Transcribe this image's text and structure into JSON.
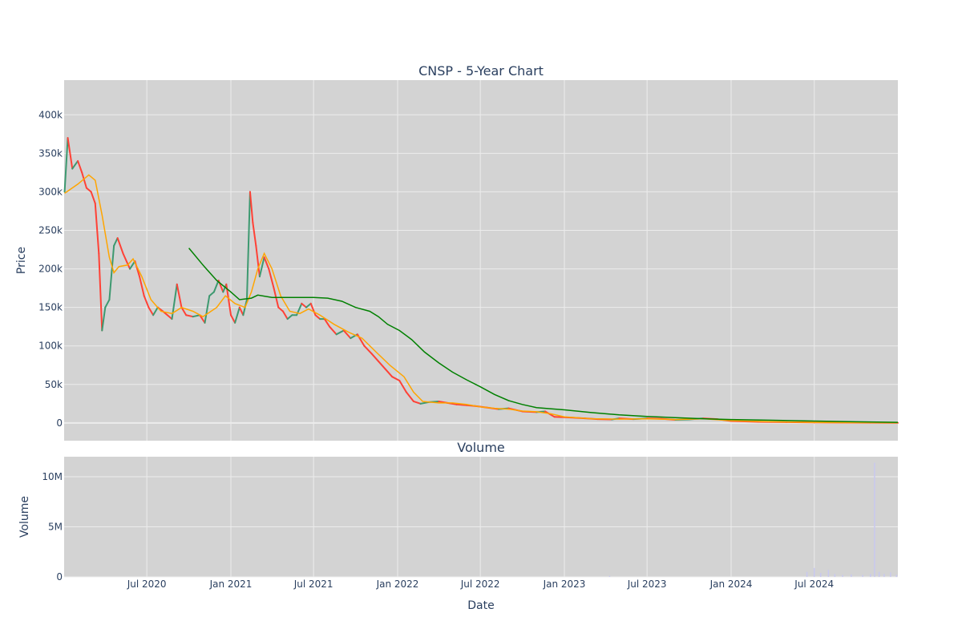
{
  "chart_data": {
    "type": "line",
    "title": "CNSP - 5-Year Chart",
    "subtitle": "Volume",
    "xlabel": "Date",
    "x_ticks": [
      "Jul 2020",
      "Jan 2021",
      "Jul 2021",
      "Jan 2022",
      "Jul 2022",
      "Jan 2023",
      "Jul 2023",
      "Jan 2024",
      "Jul 2024"
    ],
    "x_range": [
      "2020-01-02",
      "2024-12-31"
    ],
    "price_panel": {
      "ylabel": "Price",
      "ylim": [
        -23000,
        445000
      ],
      "y_ticks": [
        0,
        50000,
        100000,
        150000,
        200000,
        250000,
        300000,
        350000,
        400000
      ],
      "y_tick_labels": [
        "0",
        "50k",
        "100k",
        "150k",
        "200k",
        "250k",
        "300k",
        "350k",
        "400k"
      ],
      "grid": true,
      "series": [
        {
          "kind": "candlestick",
          "points": [
            [
              "2020-01-03",
              300000
            ],
            [
              "2020-01-10",
              370000
            ],
            [
              "2020-01-20",
              330000
            ],
            [
              "2020-02-01",
              340000
            ],
            [
              "2020-02-10",
              325000
            ],
            [
              "2020-02-20",
              305000
            ],
            [
              "2020-03-01",
              300000
            ],
            [
              "2020-03-10",
              285000
            ],
            [
              "2020-03-18",
              220000
            ],
            [
              "2020-03-25",
              120000
            ],
            [
              "2020-04-01",
              150000
            ],
            [
              "2020-04-10",
              160000
            ],
            [
              "2020-04-20",
              230000
            ],
            [
              "2020-04-28",
              240000
            ],
            [
              "2020-05-10",
              220000
            ],
            [
              "2020-05-25",
              200000
            ],
            [
              "2020-06-05",
              210000
            ],
            [
              "2020-06-15",
              190000
            ],
            [
              "2020-06-25",
              165000
            ],
            [
              "2020-07-05",
              150000
            ],
            [
              "2020-07-15",
              140000
            ],
            [
              "2020-07-25",
              150000
            ],
            [
              "2020-08-05",
              145000
            ],
            [
              "2020-08-15",
              140000
            ],
            [
              "2020-08-25",
              135000
            ],
            [
              "2020-09-05",
              180000
            ],
            [
              "2020-09-15",
              150000
            ],
            [
              "2020-09-25",
              140000
            ],
            [
              "2020-10-10",
              138000
            ],
            [
              "2020-10-25",
              140000
            ],
            [
              "2020-11-05",
              130000
            ],
            [
              "2020-11-15",
              165000
            ],
            [
              "2020-11-25",
              170000
            ],
            [
              "2020-12-05",
              185000
            ],
            [
              "2020-12-15",
              170000
            ],
            [
              "2020-12-22",
              180000
            ],
            [
              "2021-01-01",
              140000
            ],
            [
              "2021-01-10",
              130000
            ],
            [
              "2021-01-20",
              150000
            ],
            [
              "2021-01-28",
              140000
            ],
            [
              "2021-02-05",
              160000
            ],
            [
              "2021-02-12",
              300000
            ],
            [
              "2021-02-18",
              260000
            ],
            [
              "2021-02-25",
              230000
            ],
            [
              "2021-03-05",
              190000
            ],
            [
              "2021-03-15",
              215000
            ],
            [
              "2021-03-25",
              200000
            ],
            [
              "2021-04-05",
              175000
            ],
            [
              "2021-04-15",
              150000
            ],
            [
              "2021-04-25",
              145000
            ],
            [
              "2021-05-05",
              135000
            ],
            [
              "2021-05-15",
              140000
            ],
            [
              "2021-05-25",
              140000
            ],
            [
              "2021-06-05",
              155000
            ],
            [
              "2021-06-15",
              150000
            ],
            [
              "2021-06-25",
              155000
            ],
            [
              "2021-07-05",
              140000
            ],
            [
              "2021-07-15",
              135000
            ],
            [
              "2021-07-25",
              135000
            ],
            [
              "2021-08-05",
              125000
            ],
            [
              "2021-08-20",
              115000
            ],
            [
              "2021-09-05",
              120000
            ],
            [
              "2021-09-20",
              110000
            ],
            [
              "2021-10-05",
              115000
            ],
            [
              "2021-10-20",
              100000
            ],
            [
              "2021-11-05",
              90000
            ],
            [
              "2021-11-20",
              80000
            ],
            [
              "2021-12-05",
              70000
            ],
            [
              "2021-12-20",
              60000
            ],
            [
              "2022-01-05",
              55000
            ],
            [
              "2022-01-20",
              40000
            ],
            [
              "2022-02-05",
              28000
            ],
            [
              "2022-02-20",
              25000
            ],
            [
              "2022-03-10",
              27000
            ],
            [
              "2022-04-01",
              28000
            ],
            [
              "2022-04-20",
              26000
            ],
            [
              "2022-05-10",
              24000
            ],
            [
              "2022-06-01",
              23000
            ],
            [
              "2022-06-20",
              22000
            ],
            [
              "2022-07-15",
              20000
            ],
            [
              "2022-08-10",
              18000
            ],
            [
              "2022-09-01",
              19000
            ],
            [
              "2022-10-01",
              15000
            ],
            [
              "2022-11-01",
              14000
            ],
            [
              "2022-11-20",
              15000
            ],
            [
              "2022-12-10",
              8000
            ],
            [
              "2023-01-15",
              7000
            ],
            [
              "2023-02-15",
              6000
            ],
            [
              "2023-03-15",
              5000
            ],
            [
              "2023-04-15",
              4500
            ],
            [
              "2023-05-01",
              6000
            ],
            [
              "2023-06-01",
              5000
            ],
            [
              "2023-07-01",
              6000
            ],
            [
              "2023-08-01",
              5500
            ],
            [
              "2023-09-01",
              4000
            ],
            [
              "2023-10-01",
              4500
            ],
            [
              "2023-11-01",
              6000
            ],
            [
              "2023-12-01",
              5000
            ],
            [
              "2024-01-01",
              2500
            ],
            [
              "2024-03-01",
              1500
            ],
            [
              "2024-05-01",
              1000
            ],
            [
              "2024-07-01",
              600
            ],
            [
              "2024-09-01",
              400
            ],
            [
              "2024-11-01",
              300
            ],
            [
              "2024-12-31",
              200
            ]
          ]
        },
        {
          "kind": "moving-average-fast",
          "color": "#ffa500",
          "points": [
            [
              "2020-01-03",
              298000
            ],
            [
              "2020-02-01",
              310000
            ],
            [
              "2020-02-25",
              322000
            ],
            [
              "2020-03-10",
              315000
            ],
            [
              "2020-03-25",
              270000
            ],
            [
              "2020-04-10",
              215000
            ],
            [
              "2020-04-20",
              195000
            ],
            [
              "2020-05-01",
              203000
            ],
            [
              "2020-05-20",
              205000
            ],
            [
              "2020-06-01",
              213000
            ],
            [
              "2020-06-20",
              190000
            ],
            [
              "2020-07-10",
              160000
            ],
            [
              "2020-08-01",
              145000
            ],
            [
              "2020-08-25",
              142000
            ],
            [
              "2020-09-15",
              150000
            ],
            [
              "2020-10-10",
              145000
            ],
            [
              "2020-11-01",
              138000
            ],
            [
              "2020-12-01",
              150000
            ],
            [
              "2020-12-20",
              165000
            ],
            [
              "2021-01-10",
              155000
            ],
            [
              "2021-02-01",
              150000
            ],
            [
              "2021-02-15",
              170000
            ],
            [
              "2021-03-01",
              200000
            ],
            [
              "2021-03-15",
              220000
            ],
            [
              "2021-04-01",
              200000
            ],
            [
              "2021-04-20",
              165000
            ],
            [
              "2021-05-10",
              145000
            ],
            [
              "2021-06-01",
              142000
            ],
            [
              "2021-06-20",
              148000
            ],
            [
              "2021-07-15",
              140000
            ],
            [
              "2021-08-15",
              128000
            ],
            [
              "2021-09-15",
              118000
            ],
            [
              "2021-10-15",
              110000
            ],
            [
              "2021-11-15",
              92000
            ],
            [
              "2021-12-15",
              75000
            ],
            [
              "2022-01-15",
              60000
            ],
            [
              "2022-02-05",
              40000
            ],
            [
              "2022-02-25",
              28000
            ],
            [
              "2022-04-01",
              26000
            ],
            [
              "2022-05-01",
              26000
            ],
            [
              "2022-06-01",
              24000
            ],
            [
              "2022-07-01",
              21000
            ],
            [
              "2022-08-01",
              19000
            ],
            [
              "2022-09-01",
              18000
            ],
            [
              "2022-10-01",
              15500
            ],
            [
              "2022-11-01",
              14500
            ],
            [
              "2022-12-01",
              12000
            ],
            [
              "2023-01-01",
              8000
            ],
            [
              "2023-03-01",
              5500
            ],
            [
              "2023-05-01",
              5000
            ],
            [
              "2023-07-01",
              5500
            ],
            [
              "2023-09-01",
              4500
            ],
            [
              "2023-11-01",
              5500
            ],
            [
              "2024-01-01",
              3000
            ],
            [
              "2024-04-01",
              1500
            ],
            [
              "2024-07-01",
              700
            ],
            [
              "2024-10-01",
              400
            ],
            [
              "2024-12-31",
              250
            ]
          ]
        },
        {
          "kind": "moving-average-slow",
          "color": "#008000",
          "points": [
            [
              "2020-10-01",
              227000
            ],
            [
              "2020-11-01",
              205000
            ],
            [
              "2020-12-01",
              185000
            ],
            [
              "2021-01-01",
              170000
            ],
            [
              "2021-01-20",
              160000
            ],
            [
              "2021-02-15",
              162000
            ],
            [
              "2021-03-01",
              166000
            ],
            [
              "2021-04-01",
              163000
            ],
            [
              "2021-05-01",
              163000
            ],
            [
              "2021-06-01",
              163000
            ],
            [
              "2021-07-01",
              163000
            ],
            [
              "2021-08-01",
              162000
            ],
            [
              "2021-09-01",
              158000
            ],
            [
              "2021-10-01",
              150000
            ],
            [
              "2021-11-01",
              145000
            ],
            [
              "2021-11-20",
              138000
            ],
            [
              "2021-12-10",
              128000
            ],
            [
              "2022-01-05",
              120000
            ],
            [
              "2022-02-01",
              108000
            ],
            [
              "2022-03-01",
              92000
            ],
            [
              "2022-04-01",
              78000
            ],
            [
              "2022-05-01",
              66000
            ],
            [
              "2022-06-01",
              56000
            ],
            [
              "2022-07-01",
              47000
            ],
            [
              "2022-08-01",
              37000
            ],
            [
              "2022-09-01",
              29000
            ],
            [
              "2022-10-01",
              24000
            ],
            [
              "2022-11-01",
              20000
            ],
            [
              "2022-12-01",
              18500
            ],
            [
              "2023-01-01",
              17000
            ],
            [
              "2023-03-01",
              13500
            ],
            [
              "2023-05-01",
              10500
            ],
            [
              "2023-07-01",
              8500
            ],
            [
              "2023-09-01",
              7000
            ],
            [
              "2023-11-01",
              5500
            ],
            [
              "2024-01-01",
              4500
            ],
            [
              "2024-04-01",
              3500
            ],
            [
              "2024-07-01",
              2500
            ],
            [
              "2024-10-01",
              1500
            ],
            [
              "2024-12-31",
              800
            ]
          ]
        }
      ]
    },
    "volume_panel": {
      "title": "Volume",
      "ylabel": "Volume",
      "ylim": [
        0,
        12000000
      ],
      "y_ticks": [
        0,
        5000000,
        10000000
      ],
      "y_tick_labels": [
        "0",
        "5M",
        "10M"
      ],
      "grid": true,
      "bar_color": "#c8c8f0",
      "bars": [
        [
          "2023-04-10",
          100000
        ],
        [
          "2024-06-15",
          500000
        ],
        [
          "2024-07-01",
          900000
        ],
        [
          "2024-07-15",
          400000
        ],
        [
          "2024-08-01",
          700000
        ],
        [
          "2024-08-15",
          300000
        ],
        [
          "2024-09-01",
          200000
        ],
        [
          "2024-09-20",
          250000
        ],
        [
          "2024-10-15",
          200000
        ],
        [
          "2024-11-01",
          300000
        ],
        [
          "2024-11-10",
          11400000
        ],
        [
          "2024-11-20",
          500000
        ],
        [
          "2024-12-01",
          300000
        ],
        [
          "2024-12-15",
          450000
        ],
        [
          "2024-12-28",
          200000
        ]
      ]
    },
    "colors": {
      "increasing": "#3d9970",
      "decreasing": "#ff4136",
      "plot_bg": "#d3d3d3",
      "grid": "#ececec",
      "text": "#2a3f5f"
    }
  }
}
